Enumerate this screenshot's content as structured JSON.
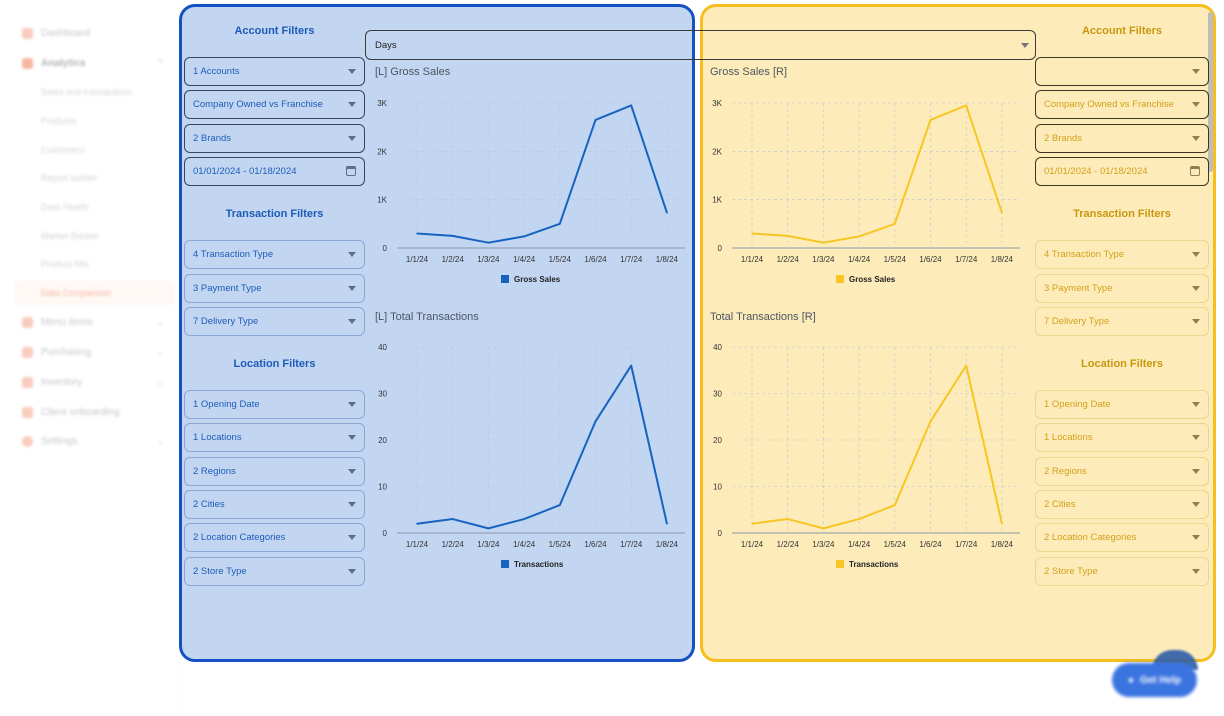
{
  "sidebar": {
    "items": [
      {
        "label": "Dashboard",
        "icon": "grid-icon",
        "color": "#f5a48a"
      },
      {
        "label": "Analytics",
        "icon": "chart-icon",
        "color": "#f07d55",
        "expanded": true
      },
      {
        "label": "Sales and transactions"
      },
      {
        "label": "Products"
      },
      {
        "label": "Customers"
      },
      {
        "label": "Report builder"
      },
      {
        "label": "Data Health"
      },
      {
        "label": "Market Basket"
      },
      {
        "label": "Product Mix"
      },
      {
        "label": "Data Comparison",
        "active": true
      },
      {
        "label": "Menu items",
        "icon": "menu-icon",
        "color": "#f5a48a"
      },
      {
        "label": "Purchasing",
        "icon": "cart-icon",
        "color": "#f5a48a"
      },
      {
        "label": "Inventory",
        "icon": "box-icon",
        "color": "#f5a48a"
      },
      {
        "label": "Client onboarding",
        "icon": "rocket-icon",
        "color": "#f5a48a"
      },
      {
        "label": "Settings",
        "icon": "gear-icon",
        "color": "#f5a48a"
      }
    ]
  },
  "period_select": {
    "value": "Days"
  },
  "left": {
    "account_heading": "Account Filters",
    "transaction_heading": "Transaction Filters",
    "location_heading": "Location Filters",
    "account_filters": [
      "1 Accounts",
      "Company Owned vs Franchise",
      "2 Brands"
    ],
    "date_range": "01/01/2024 - 01/18/2024",
    "transaction_filters": [
      "4 Transaction Type",
      "3 Payment Type",
      "7 Delivery Type"
    ],
    "location_filters": [
      "1 Opening Date",
      "1 Locations",
      "2 Regions",
      "2 Cities",
      "2 Location Categories",
      "2 Store Type"
    ],
    "gross_title": "[L] Gross Sales",
    "trans_title": "[L] Total Transactions"
  },
  "right": {
    "account_heading": "Account Filters",
    "transaction_heading": "Transaction Filters",
    "location_heading": "Location Filters",
    "account_filters": [
      "",
      "Company Owned vs Franchise",
      "2 Brands"
    ],
    "date_range": "01/01/2024 - 01/18/2024",
    "transaction_filters": [
      "4 Transaction Type",
      "3 Payment Type",
      "7 Delivery Type"
    ],
    "location_filters": [
      "1 Opening Date",
      "1 Locations",
      "2 Regions",
      "2 Cities",
      "2 Location Categories",
      "2 Store Type"
    ],
    "gross_title": "Gross Sales [R]",
    "trans_title": "Total Transactions [R]"
  },
  "colors": {
    "left_series": "#1863c0",
    "right_series": "#f7c623",
    "left_accent": "#1452c3",
    "right_accent": "#f6bf1e"
  },
  "help_button": {
    "label": "Get Help",
    "icon": "chat-icon"
  },
  "chart_data": [
    {
      "type": "line",
      "id": "left-gross",
      "categories": [
        "1/1/24",
        "1/2/24",
        "1/3/24",
        "1/4/24",
        "1/5/24",
        "1/6/24",
        "1/7/24",
        "1/8/24"
      ],
      "series": [
        {
          "name": "Gross Sales",
          "values": [
            300,
            250,
            110,
            240,
            500,
            2650,
            2950,
            730
          ]
        }
      ],
      "yticks": [
        0,
        1000,
        2000,
        3000
      ],
      "ytick_labels": [
        "0",
        "1K",
        "2K",
        "3K"
      ],
      "ylim": [
        0,
        3000
      ],
      "grid": true,
      "legend": "bottom"
    },
    {
      "type": "line",
      "id": "right-gross",
      "categories": [
        "1/1/24",
        "1/2/24",
        "1/3/24",
        "1/4/24",
        "1/5/24",
        "1/6/24",
        "1/7/24",
        "1/8/24"
      ],
      "series": [
        {
          "name": "Gross Sales",
          "values": [
            300,
            250,
            110,
            240,
            500,
            2650,
            2950,
            730
          ]
        }
      ],
      "yticks": [
        0,
        1000,
        2000,
        3000
      ],
      "ytick_labels": [
        "0",
        "1K",
        "2K",
        "3K"
      ],
      "ylim": [
        0,
        3000
      ],
      "grid": true,
      "legend": "bottom"
    },
    {
      "type": "line",
      "id": "left-trans",
      "categories": [
        "1/1/24",
        "1/2/24",
        "1/3/24",
        "1/4/24",
        "1/5/24",
        "1/6/24",
        "1/7/24",
        "1/8/24"
      ],
      "series": [
        {
          "name": "Transactions",
          "values": [
            2,
            3,
            1,
            3,
            6,
            24,
            36,
            2
          ]
        }
      ],
      "yticks": [
        0,
        10,
        20,
        30,
        40
      ],
      "ytick_labels": [
        "0",
        "10",
        "20",
        "30",
        "40"
      ],
      "ylim": [
        0,
        40
      ],
      "grid": true,
      "legend": "bottom"
    },
    {
      "type": "line",
      "id": "right-trans",
      "categories": [
        "1/1/24",
        "1/2/24",
        "1/3/24",
        "1/4/24",
        "1/5/24",
        "1/6/24",
        "1/7/24",
        "1/8/24"
      ],
      "series": [
        {
          "name": "Transactions",
          "values": [
            2,
            3,
            1,
            3,
            6,
            24,
            36,
            2
          ]
        }
      ],
      "yticks": [
        0,
        10,
        20,
        30,
        40
      ],
      "ytick_labels": [
        "0",
        "10",
        "20",
        "30",
        "40"
      ],
      "ylim": [
        0,
        40
      ],
      "grid": true,
      "legend": "bottom"
    }
  ]
}
